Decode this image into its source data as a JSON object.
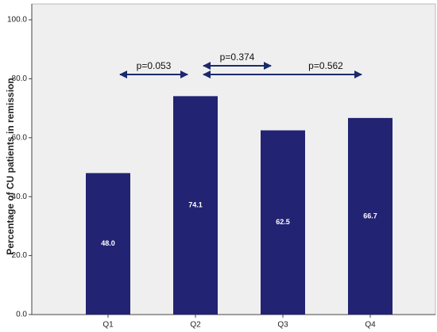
{
  "chart_data": {
    "type": "bar",
    "y_label": "Percentage of CU patients in remission",
    "categories": [
      "Q1",
      "Q2",
      "Q3",
      "Q4"
    ],
    "values": [
      48.0,
      74.1,
      62.5,
      66.7
    ],
    "value_labels": [
      "48.0",
      "74.1",
      "62.5",
      "66.7"
    ],
    "color": "#232373",
    "ylim": [
      0,
      100
    ],
    "yticks": [
      {
        "value": 0,
        "label": "0.0"
      },
      {
        "value": 20,
        "label": "20.0"
      },
      {
        "value": 40,
        "label": "40.0"
      },
      {
        "value": 60,
        "label": "60.0"
      },
      {
        "value": 80,
        "label": "80.0"
      },
      {
        "value": 100,
        "label": "100.0"
      }
    ],
    "annotations": [
      "p=0.053",
      "p=0.374",
      "p=0.562"
    ]
  }
}
